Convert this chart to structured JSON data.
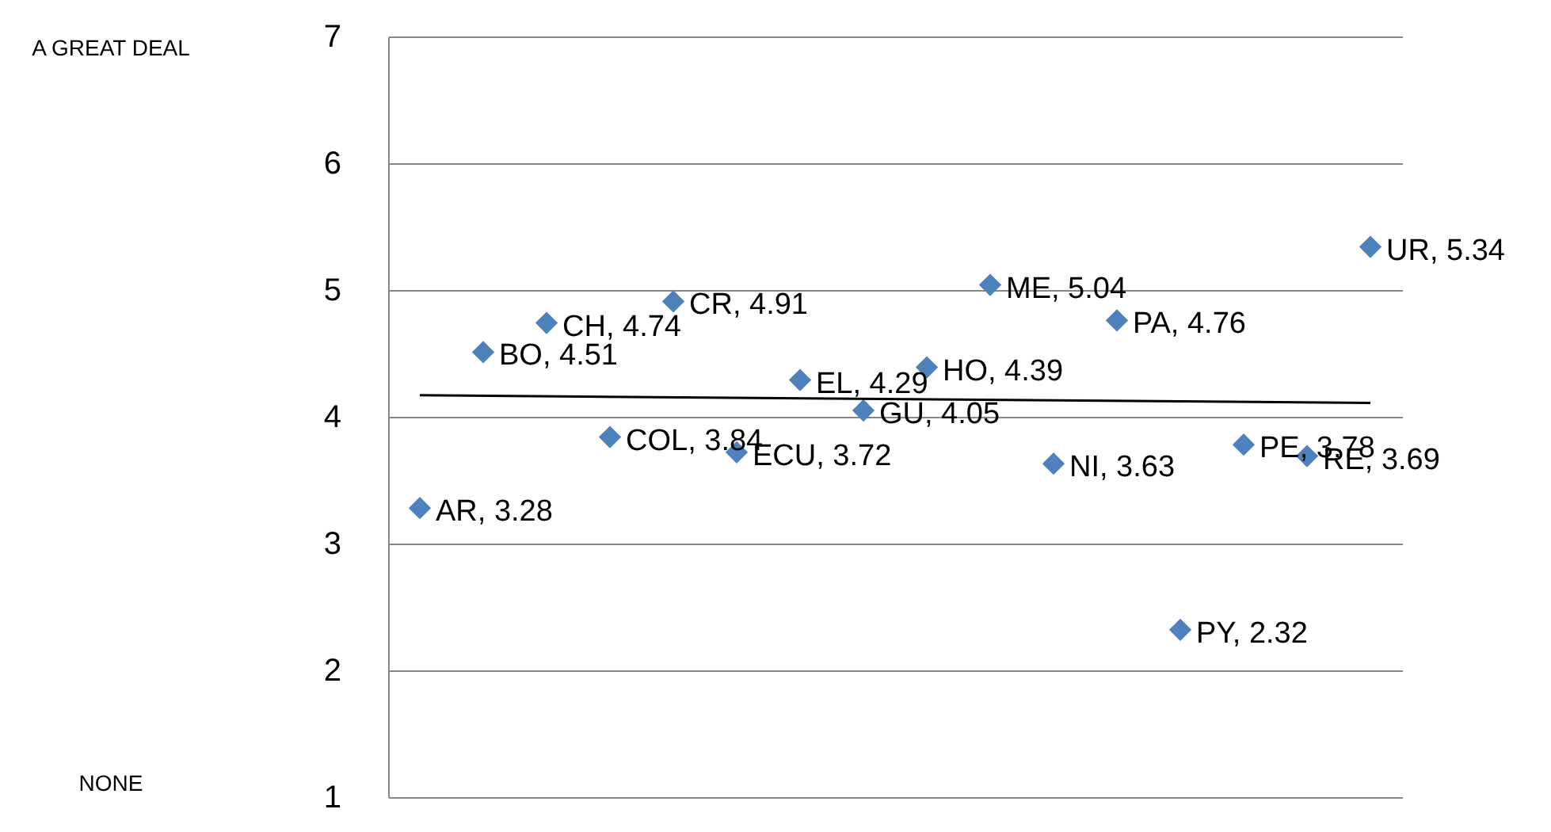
{
  "chart_data": {
    "type": "scatter",
    "categories": [
      null,
      null,
      null,
      null,
      null,
      null,
      null,
      null,
      null,
      null,
      null,
      null,
      null,
      null,
      null,
      null
    ],
    "ylim": [
      1,
      7
    ],
    "yticks": [
      1,
      2,
      3,
      4,
      5,
      6,
      7
    ],
    "grid": "y",
    "tick_labels": "y",
    "series": [
      {
        "color": "#4f81bd",
        "marker": "diamond",
        "values": [
          3.28,
          4.51,
          4.74,
          3.84,
          4.91,
          3.72,
          4.29,
          4.05,
          4.39,
          5.04,
          3.63,
          4.76,
          2.32,
          3.78,
          3.69,
          5.34
        ],
        "value_labels": [
          "AR, 3.28",
          "BO, 4.51",
          "CH, 4.74",
          "COL, 3.84",
          "CR, 4.91",
          "ECU, 3.72",
          "EL, 4.29",
          "GU, 4.05",
          "HO, 4.39",
          "ME, 5.04",
          "NI, 3.63",
          "PA, 4.76",
          "PY, 2.32",
          "PE, 3.78",
          "RE, 3.69",
          "UR, 5.34"
        ]
      },
      {
        "type": "line",
        "marker": "none",
        "color": "#000000",
        "values": [
          4.17,
          null,
          null,
          null,
          null,
          null,
          null,
          null,
          null,
          null,
          null,
          null,
          null,
          null,
          null,
          4.11
        ]
      }
    ],
    "annotations": [
      "A GREAT DEAL",
      "NONE"
    ]
  }
}
